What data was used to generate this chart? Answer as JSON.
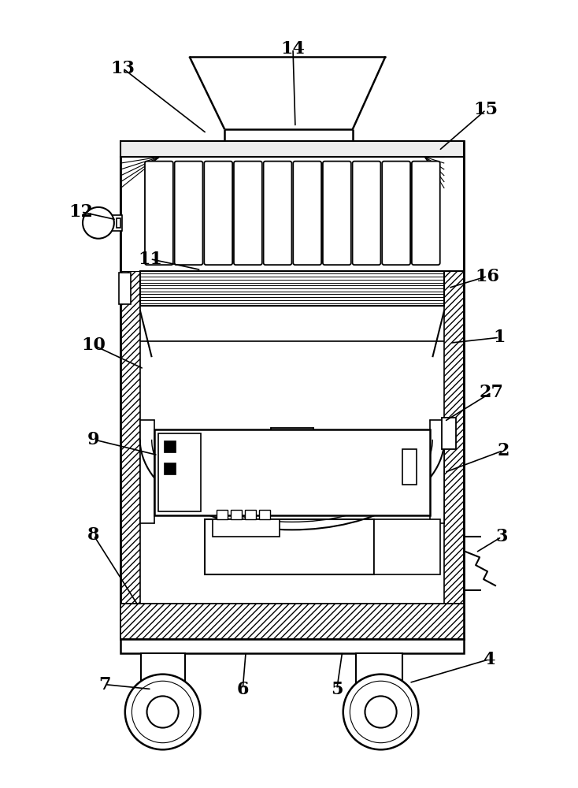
{
  "bg_color": "#ffffff",
  "lc": "#000000",
  "figure_width": 7.34,
  "figure_height": 10.0,
  "annotations": [
    [
      "13",
      155,
      85,
      262,
      168
    ],
    [
      "14",
      372,
      60,
      375,
      160
    ],
    [
      "15",
      618,
      138,
      558,
      190
    ],
    [
      "12",
      102,
      268,
      147,
      278
    ],
    [
      "11",
      190,
      328,
      255,
      342
    ],
    [
      "16",
      620,
      350,
      570,
      365
    ],
    [
      "10",
      118,
      438,
      182,
      468
    ],
    [
      "1",
      635,
      428,
      572,
      435
    ],
    [
      "27",
      625,
      498,
      565,
      535
    ],
    [
      "9",
      118,
      558,
      200,
      578
    ],
    [
      "2",
      640,
      572,
      565,
      600
    ],
    [
      "8",
      118,
      680,
      175,
      770
    ],
    [
      "3",
      638,
      682,
      605,
      702
    ],
    [
      "7",
      132,
      870,
      192,
      876
    ],
    [
      "6",
      308,
      876,
      312,
      828
    ],
    [
      "5",
      428,
      876,
      435,
      828
    ],
    [
      "4",
      622,
      838,
      520,
      868
    ]
  ]
}
